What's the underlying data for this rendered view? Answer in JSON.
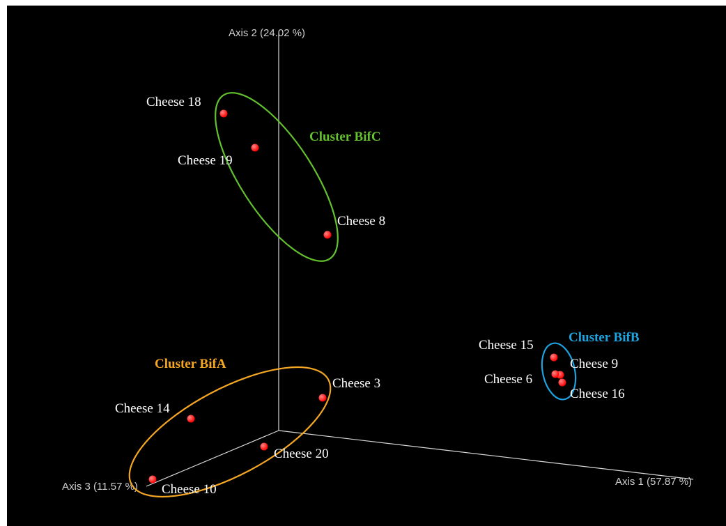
{
  "chart_data": {
    "type": "scatter",
    "title": "",
    "axes": {
      "x": {
        "label": "Axis 1 (57.87 %)"
      },
      "y": {
        "label": "Axis 2 (24.02 %)"
      },
      "z": {
        "label": "Axis 3 (11.57 %)"
      }
    },
    "colors": {
      "background": "#000000",
      "axis": "#d8d8d8",
      "point": "#ff0000",
      "BifA": "#f5a623",
      "BifB": "#1fa2e0",
      "BifC": "#63c02f"
    },
    "points": [
      {
        "label": "Cheese 18",
        "cluster": "BifC"
      },
      {
        "label": "Cheese 19",
        "cluster": "BifC"
      },
      {
        "label": "Cheese 8",
        "cluster": "BifC"
      },
      {
        "label": "Cheese 15",
        "cluster": "BifB"
      },
      {
        "label": "Cheese 9",
        "cluster": "BifB"
      },
      {
        "label": "Cheese 6",
        "cluster": "BifB"
      },
      {
        "label": "Cheese 16",
        "cluster": "BifB"
      },
      {
        "label": "Cheese 3",
        "cluster": "BifA"
      },
      {
        "label": "Cheese 14",
        "cluster": "BifA"
      },
      {
        "label": "Cheese 20",
        "cluster": "BifA"
      },
      {
        "label": "Cheese 10",
        "cluster": "BifA"
      }
    ],
    "clusters": [
      {
        "id": "BifC",
        "label": "Cluster BifC"
      },
      {
        "id": "BifB",
        "label": "Cluster BifB"
      },
      {
        "id": "BifA",
        "label": "Cluster BifA"
      }
    ]
  }
}
